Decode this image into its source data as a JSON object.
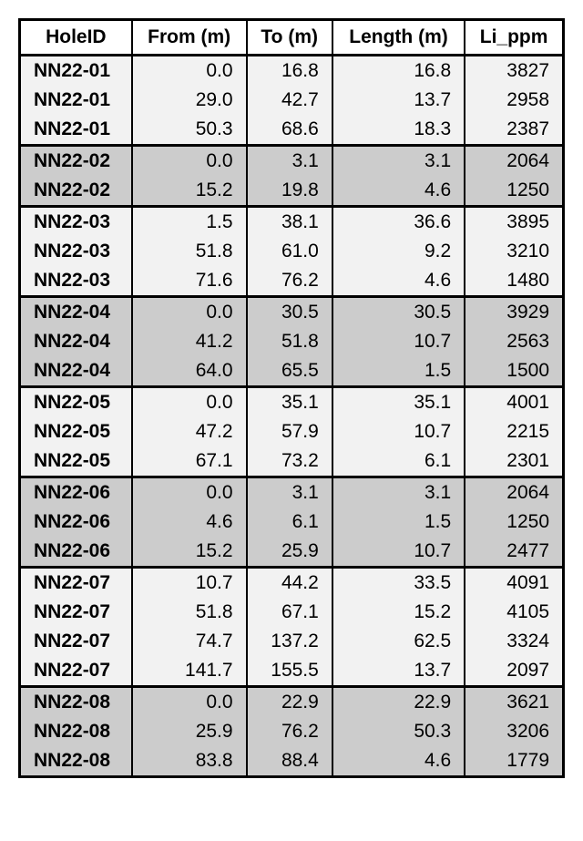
{
  "table": {
    "columns": [
      "HoleID",
      "From (m)",
      "To (m)",
      "Length (m)",
      "Li_ppm"
    ],
    "column_align": [
      "left",
      "right",
      "right",
      "right",
      "right"
    ],
    "header_bg": "#ffffff",
    "light_bg": "#f2f2f2",
    "dark_bg": "#cccccc",
    "border_color": "#000000",
    "outer_border_width": 3,
    "inner_vertical_border_width": 2,
    "group_divider_width": 3,
    "font_family": "Arial",
    "header_fontsize": 21,
    "cell_fontsize": 21,
    "groups": [
      {
        "shade": "light",
        "rows": [
          [
            "NN22-01",
            "0.0",
            "16.8",
            "16.8",
            "3827"
          ],
          [
            "NN22-01",
            "29.0",
            "42.7",
            "13.7",
            "2958"
          ],
          [
            "NN22-01",
            "50.3",
            "68.6",
            "18.3",
            "2387"
          ]
        ]
      },
      {
        "shade": "dark",
        "rows": [
          [
            "NN22-02",
            "0.0",
            "3.1",
            "3.1",
            "2064"
          ],
          [
            "NN22-02",
            "15.2",
            "19.8",
            "4.6",
            "1250"
          ]
        ]
      },
      {
        "shade": "light",
        "rows": [
          [
            "NN22-03",
            "1.5",
            "38.1",
            "36.6",
            "3895"
          ],
          [
            "NN22-03",
            "51.8",
            "61.0",
            "9.2",
            "3210"
          ],
          [
            "NN22-03",
            "71.6",
            "76.2",
            "4.6",
            "1480"
          ]
        ]
      },
      {
        "shade": "dark",
        "rows": [
          [
            "NN22-04",
            "0.0",
            "30.5",
            "30.5",
            "3929"
          ],
          [
            "NN22-04",
            "41.2",
            "51.8",
            "10.7",
            "2563"
          ],
          [
            "NN22-04",
            "64.0",
            "65.5",
            "1.5",
            "1500"
          ]
        ]
      },
      {
        "shade": "light",
        "rows": [
          [
            "NN22-05",
            "0.0",
            "35.1",
            "35.1",
            "4001"
          ],
          [
            "NN22-05",
            "47.2",
            "57.9",
            "10.7",
            "2215"
          ],
          [
            "NN22-05",
            "67.1",
            "73.2",
            "6.1",
            "2301"
          ]
        ]
      },
      {
        "shade": "dark",
        "rows": [
          [
            "NN22-06",
            "0.0",
            "3.1",
            "3.1",
            "2064"
          ],
          [
            "NN22-06",
            "4.6",
            "6.1",
            "1.5",
            "1250"
          ],
          [
            "NN22-06",
            "15.2",
            "25.9",
            "10.7",
            "2477"
          ]
        ]
      },
      {
        "shade": "light",
        "rows": [
          [
            "NN22-07",
            "10.7",
            "44.2",
            "33.5",
            "4091"
          ],
          [
            "NN22-07",
            "51.8",
            "67.1",
            "15.2",
            "4105"
          ],
          [
            "NN22-07",
            "74.7",
            "137.2",
            "62.5",
            "3324"
          ],
          [
            "NN22-07",
            "141.7",
            "155.5",
            "13.7",
            "2097"
          ]
        ]
      },
      {
        "shade": "dark",
        "rows": [
          [
            "NN22-08",
            "0.0",
            "22.9",
            "22.9",
            "3621"
          ],
          [
            "NN22-08",
            "25.9",
            "76.2",
            "50.3",
            "3206"
          ],
          [
            "NN22-08",
            "83.8",
            "88.4",
            "4.6",
            "1779"
          ]
        ]
      }
    ]
  }
}
